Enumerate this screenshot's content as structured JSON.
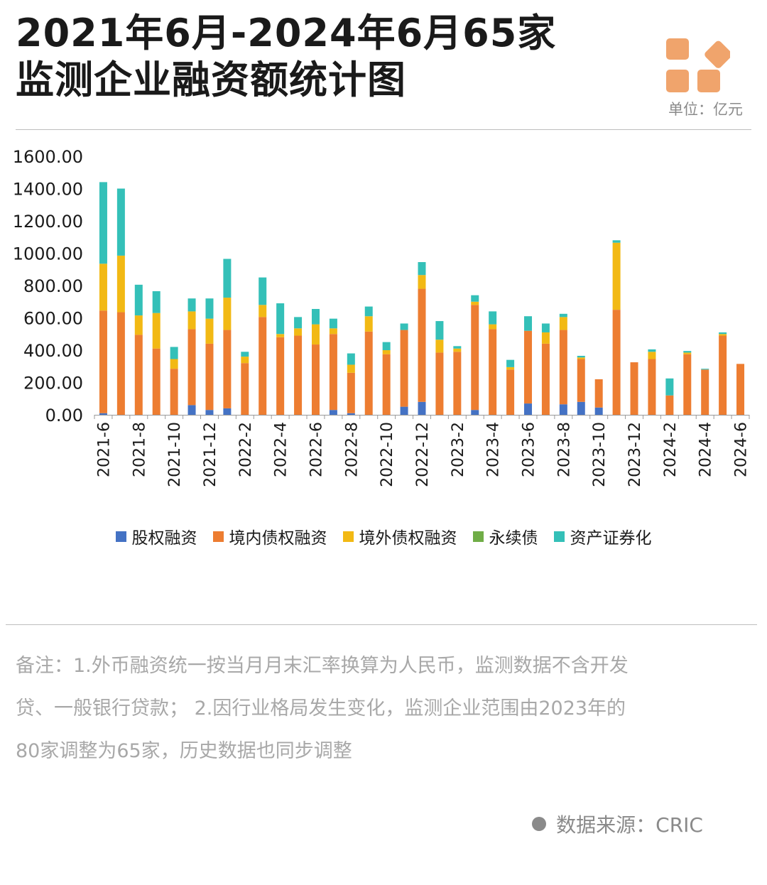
{
  "title": {
    "line1": "2021年6月-2024年6月65家",
    "line2": "监测企业融资额统计图"
  },
  "unit": "单位：亿元",
  "logo_icon": "orange-tiles-logo",
  "legend": {
    "equity": "股权融资",
    "domestic_debt": "境内债权融资",
    "overseas_debt": "境外债权融资",
    "perpetual": "永续债",
    "abs": "资产证券化"
  },
  "note": {
    "line1": "备注：1.外币融资统一按当月月末汇率换算为人民币，监测数据不含开发",
    "line2": "贷、一般银行贷款；  2.因行业格局发生变化，监测企业范围由2023年的",
    "line3": "80家调整为65家，历史数据也同步调整"
  },
  "source": "数据来源：CRIC",
  "colors": {
    "equity": "#4472c4",
    "domestic_debt": "#ed7d31",
    "overseas_debt": "#f2b914",
    "perpetual": "#70ad47",
    "abs": "#34c0b8",
    "logo": "#f0a46c"
  },
  "chart_data": {
    "type": "bar",
    "stacked": true,
    "categories": [
      "2021-6",
      "2021-7",
      "2021-8",
      "2021-9",
      "2021-10",
      "2021-11",
      "2021-12",
      "2022-1",
      "2022-2",
      "2022-3",
      "2022-4",
      "2022-5",
      "2022-6",
      "2022-7",
      "2022-8",
      "2022-9",
      "2022-10",
      "2022-11",
      "2022-12",
      "2023-1",
      "2023-2",
      "2023-3",
      "2023-4",
      "2023-5",
      "2023-6",
      "2023-7",
      "2023-8",
      "2023-9",
      "2023-10",
      "2023-11",
      "2023-12",
      "2024-1",
      "2024-2",
      "2024-3",
      "2024-4",
      "2024-5",
      "2024-6"
    ],
    "tick_labels": [
      "2021-6",
      "",
      "2021-8",
      "",
      "2021-10",
      "",
      "2021-12",
      "",
      "2022-2",
      "",
      "2022-4",
      "",
      "2022-6",
      "",
      "2022-8",
      "",
      "2022-10",
      "",
      "2022-12",
      "",
      "2023-2",
      "",
      "2023-4",
      "",
      "2023-6",
      "",
      "2023-8",
      "",
      "2023-10",
      "",
      "2023-12",
      "",
      "2024-2",
      "",
      "2024-4",
      "",
      "2024-6"
    ],
    "series": [
      {
        "name": "股权融资",
        "values": [
          10,
          0,
          0,
          0,
          0,
          60,
          30,
          40,
          0,
          0,
          0,
          0,
          0,
          30,
          10,
          0,
          0,
          50,
          80,
          0,
          0,
          30,
          0,
          0,
          70,
          0,
          65,
          80,
          45,
          0,
          0,
          0,
          0,
          0,
          0,
          0,
          0
        ]
      },
      {
        "name": "境内债权融资",
        "values": [
          635,
          635,
          495,
          410,
          285,
          470,
          410,
          485,
          320,
          605,
          480,
          490,
          435,
          470,
          250,
          515,
          375,
          475,
          700,
          385,
          390,
          650,
          530,
          280,
          450,
          440,
          460,
          265,
          175,
          650,
          325,
          345,
          120,
          375,
          280,
          490,
          315
        ]
      },
      {
        "name": "境外债权融资",
        "values": [
          290,
          350,
          120,
          220,
          60,
          110,
          155,
          200,
          40,
          75,
          20,
          45,
          125,
          35,
          50,
          95,
          25,
          0,
          85,
          80,
          20,
          20,
          30,
          15,
          0,
          70,
          80,
          10,
          0,
          415,
          0,
          45,
          0,
          10,
          0,
          10,
          0
        ]
      },
      {
        "name": "永续债",
        "values": [
          0,
          0,
          0,
          0,
          0,
          0,
          0,
          0,
          0,
          0,
          0,
          0,
          0,
          0,
          0,
          0,
          0,
          0,
          0,
          0,
          0,
          0,
          0,
          0,
          0,
          0,
          0,
          0,
          0,
          0,
          0,
          0,
          0,
          0,
          0,
          0,
          0
        ]
      },
      {
        "name": "资产证券化",
        "values": [
          505,
          415,
          190,
          135,
          75,
          80,
          125,
          240,
          30,
          170,
          190,
          70,
          95,
          60,
          70,
          60,
          50,
          40,
          80,
          115,
          15,
          40,
          80,
          45,
          90,
          55,
          20,
          10,
          0,
          15,
          0,
          15,
          105,
          10,
          5,
          10,
          0
        ]
      }
    ],
    "ylim": [
      0,
      1600
    ],
    "yticks": [
      "0.00",
      "200.00",
      "400.00",
      "600.00",
      "800.00",
      "1000.00",
      "1200.00",
      "1400.00",
      "1600.00"
    ],
    "grid": false,
    "legend_position": "bottom"
  }
}
